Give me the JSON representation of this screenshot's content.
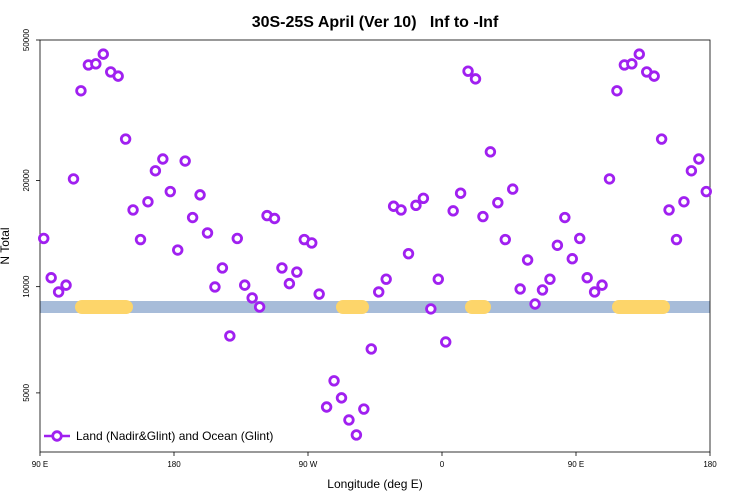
{
  "chart_data": {
    "type": "scatter",
    "title": "30S-25S April (Ver 10)   Inf to -Inf",
    "xlabel": "Longitude (deg E)",
    "ylabel": "N Total",
    "log_y": true,
    "grid": false,
    "legend_loc": "lower left",
    "xlim": [
      90,
      540
    ],
    "ylim": [
      3400,
      50000
    ],
    "xticks": [
      {
        "value": 90,
        "label": "90 E"
      },
      180,
      {
        "value": 270,
        "label": "90 W"
      },
      {
        "value": 360,
        "label": "0"
      },
      {
        "value": 450,
        "label": "90 E"
      },
      {
        "value": 540,
        "label": "180"
      }
    ],
    "yticks": [
      5000,
      10000,
      20000,
      50000
    ],
    "series": [
      {
        "name": "Land (Nadir&Glint) and Ocean (Glint)",
        "color": "#a020f0",
        "x": [
          92.5,
          97.5,
          102.5,
          107.5,
          112.5,
          117.5,
          122.5,
          127.5,
          132.5,
          137.5,
          142.5,
          147.5,
          152.5,
          157.5,
          162.5,
          167.5,
          172.5,
          177.5,
          182.5,
          187.5,
          192.5,
          197.5,
          202.5,
          207.5,
          212.5,
          217.5,
          222.5,
          227.5,
          232.5,
          237.5,
          242.5,
          247.5,
          252.5,
          257.5,
          262.5,
          267.5,
          272.5,
          277.5,
          282.5,
          287.5,
          292.5,
          297.5,
          302.5,
          307.5,
          312.5,
          317.5,
          322.5,
          327.5,
          332.5,
          337.5,
          342.5,
          347.5,
          352.5,
          357.5,
          362.5,
          367.5,
          372.5,
          377.5,
          382.5,
          387.5,
          392.5,
          397.5,
          402.5,
          407.5,
          412.5,
          417.5,
          422.5,
          427.5,
          432.5,
          437.5,
          442.5,
          447.5,
          452.5,
          457.5,
          462.5,
          467.5,
          472.5,
          477.5,
          482.5,
          487.5,
          492.5,
          497.5,
          502.5,
          507.5,
          512.5,
          517.5,
          522.5,
          527.5,
          532.5,
          537.5
        ],
        "values": [
          13700,
          10600,
          9660,
          10100,
          20200,
          35900,
          42500,
          42800,
          45600,
          40600,
          39500,
          26200,
          16500,
          13600,
          17400,
          21300,
          23000,
          18600,
          12700,
          22700,
          15700,
          18200,
          14200,
          9980,
          11300,
          7250,
          13700,
          10100,
          9290,
          8760,
          15900,
          15600,
          11300,
          10200,
          11000,
          13600,
          13300,
          9530,
          4560,
          5410,
          4840,
          4190,
          3800,
          4500,
          6660,
          9660,
          10500,
          16900,
          16500,
          12400,
          17000,
          17800,
          8650,
          10500,
          6970,
          16400,
          18400,
          40800,
          38800,
          15800,
          24100,
          17300,
          13600,
          18900,
          9850,
          11900,
          8930,
          9790,
          10500,
          13100,
          15700,
          12000,
          13700,
          10600,
          9660,
          10100,
          20200,
          35900,
          42500,
          42800,
          45600,
          40600,
          39500,
          26200,
          16500,
          13600,
          17400,
          21300,
          23000,
          18600
        ]
      }
    ]
  }
}
